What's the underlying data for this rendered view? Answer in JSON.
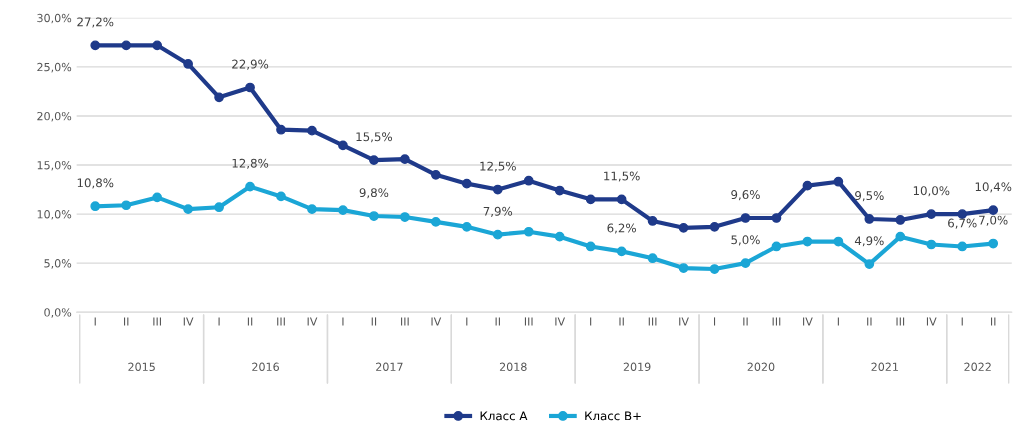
{
  "chart_data": {
    "type": "line",
    "categories": [
      "I",
      "II",
      "III",
      "IV",
      "I",
      "II",
      "III",
      "IV",
      "I",
      "II",
      "III",
      "IV",
      "I",
      "II",
      "III",
      "IV",
      "I",
      "II",
      "III",
      "IV",
      "I",
      "II",
      "III",
      "IV",
      "I",
      "II",
      "III",
      "IV",
      "I",
      "II"
    ],
    "annotations": [
      "2015",
      "2016",
      "2017",
      "2018",
      "2019",
      "2020",
      "2021",
      "2022"
    ],
    "series": [
      {
        "name": "Класс А",
        "color": "#1f3a8a",
        "values": [
          27.2,
          27.2,
          27.2,
          25.3,
          21.9,
          22.9,
          18.6,
          18.5,
          17.0,
          15.5,
          15.6,
          14.0,
          13.1,
          12.5,
          13.4,
          12.4,
          11.5,
          11.5,
          9.3,
          8.6,
          8.7,
          9.6,
          9.6,
          12.9,
          13.3,
          9.5,
          9.4,
          10.0,
          10.0,
          10.4
        ],
        "value_labels": [
          "27,2%",
          null,
          null,
          null,
          null,
          "22,9%",
          null,
          null,
          null,
          "15,5%",
          null,
          null,
          null,
          "12,5%",
          null,
          null,
          null,
          "11,5%",
          null,
          null,
          null,
          "9,6%",
          null,
          null,
          null,
          "9,5%",
          null,
          "10,0%",
          null,
          "10,4%"
        ]
      },
      {
        "name": "Класс В+",
        "color": "#1ba6d6",
        "values": [
          10.8,
          10.9,
          11.7,
          10.5,
          10.7,
          12.8,
          11.8,
          10.5,
          10.4,
          9.8,
          9.7,
          9.2,
          8.7,
          7.9,
          8.2,
          7.7,
          6.7,
          6.2,
          5.5,
          4.5,
          4.4,
          5.0,
          6.7,
          7.2,
          7.2,
          4.9,
          7.7,
          6.9,
          6.7,
          7.0
        ],
        "value_labels": [
          "10,8%",
          null,
          null,
          null,
          null,
          "12,8%",
          null,
          null,
          null,
          "9,8%",
          null,
          null,
          null,
          "7,9%",
          null,
          null,
          null,
          "6,2%",
          null,
          null,
          null,
          "5,0%",
          null,
          null,
          null,
          "4,9%",
          null,
          null,
          "6,7%",
          "7,0%"
        ]
      }
    ],
    "ylim": [
      0,
      30
    ],
    "yticks": [
      {
        "value": 0,
        "label": "0,0%"
      },
      {
        "value": 5,
        "label": "5,0%"
      },
      {
        "value": 10,
        "label": "10,0%"
      },
      {
        "value": 15,
        "label": "15,0%"
      },
      {
        "value": 20,
        "label": "20,0%"
      },
      {
        "value": 25,
        "label": "25,0%"
      },
      {
        "value": 30,
        "label": "30,0%"
      }
    ],
    "grid": "y",
    "legend": "bottom",
    "marker": "circle",
    "line_style": "solid"
  }
}
